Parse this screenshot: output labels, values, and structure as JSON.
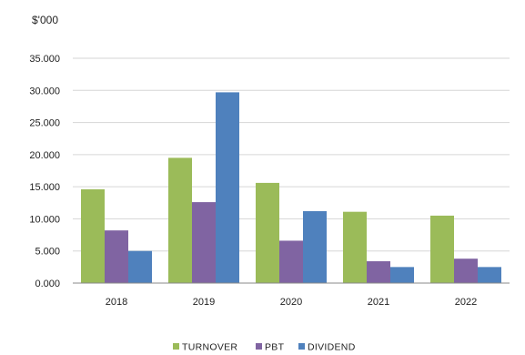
{
  "chart_data": {
    "type": "bar",
    "title": "",
    "unit_label": "$'000",
    "xlabel": "",
    "ylabel": "",
    "categories": [
      "2018",
      "2019",
      "2020",
      "2021",
      "2022"
    ],
    "series": [
      {
        "name": "TURNOVER",
        "color": "#9bbb59",
        "values": [
          14.6,
          19.5,
          15.6,
          11.1,
          10.5
        ]
      },
      {
        "name": "PBT",
        "color": "#8064a2",
        "values": [
          8.2,
          12.6,
          6.6,
          3.4,
          3.8
        ]
      },
      {
        "name": "DIVIDEND",
        "color": "#4f81bd",
        "values": [
          5.0,
          29.7,
          11.2,
          2.5,
          2.5
        ]
      }
    ],
    "ylim": [
      0,
      35
    ],
    "yticks": [
      0,
      5,
      10,
      15,
      20,
      25,
      30,
      35
    ],
    "ytick_labels": [
      "0.000",
      "5.000",
      "10.000",
      "15.000",
      "20.000",
      "25.000",
      "30.000",
      "35.000"
    ],
    "grid": true,
    "legend_position": "bottom"
  }
}
